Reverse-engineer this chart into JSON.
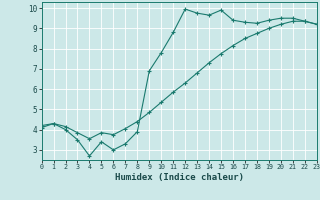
{
  "xlabel": "Humidex (Indice chaleur)",
  "bg_color": "#cce8e8",
  "line_color": "#1a7a6e",
  "grid_color": "#ffffff",
  "line1_x": [
    0,
    1,
    2,
    3,
    4,
    5,
    6,
    7,
    8,
    9,
    10,
    11,
    12,
    13,
    14,
    15,
    16,
    17,
    18,
    19,
    20,
    21,
    22,
    23
  ],
  "line1_y": [
    4.2,
    4.3,
    4.0,
    3.5,
    2.7,
    3.4,
    3.0,
    3.3,
    3.9,
    6.9,
    7.8,
    8.8,
    9.95,
    9.75,
    9.65,
    9.9,
    9.4,
    9.3,
    9.25,
    9.4,
    9.5,
    9.5,
    9.35,
    9.2
  ],
  "line2_x": [
    0,
    1,
    2,
    3,
    4,
    5,
    6,
    7,
    8,
    9,
    10,
    11,
    12,
    13,
    14,
    15,
    16,
    17,
    18,
    19,
    20,
    21,
    22,
    23
  ],
  "line2_y": [
    4.1,
    4.3,
    4.15,
    3.85,
    3.55,
    3.85,
    3.75,
    4.05,
    4.4,
    4.85,
    5.35,
    5.85,
    6.3,
    6.8,
    7.3,
    7.75,
    8.15,
    8.5,
    8.75,
    9.0,
    9.2,
    9.35,
    9.35,
    9.2
  ],
  "xlim": [
    0,
    23
  ],
  "ylim": [
    2.5,
    10.3
  ],
  "yticks": [
    3,
    4,
    5,
    6,
    7,
    8,
    9,
    10
  ],
  "xticks": [
    0,
    1,
    2,
    3,
    4,
    5,
    6,
    7,
    8,
    9,
    10,
    11,
    12,
    13,
    14,
    15,
    16,
    17,
    18,
    19,
    20,
    21,
    22,
    23
  ]
}
